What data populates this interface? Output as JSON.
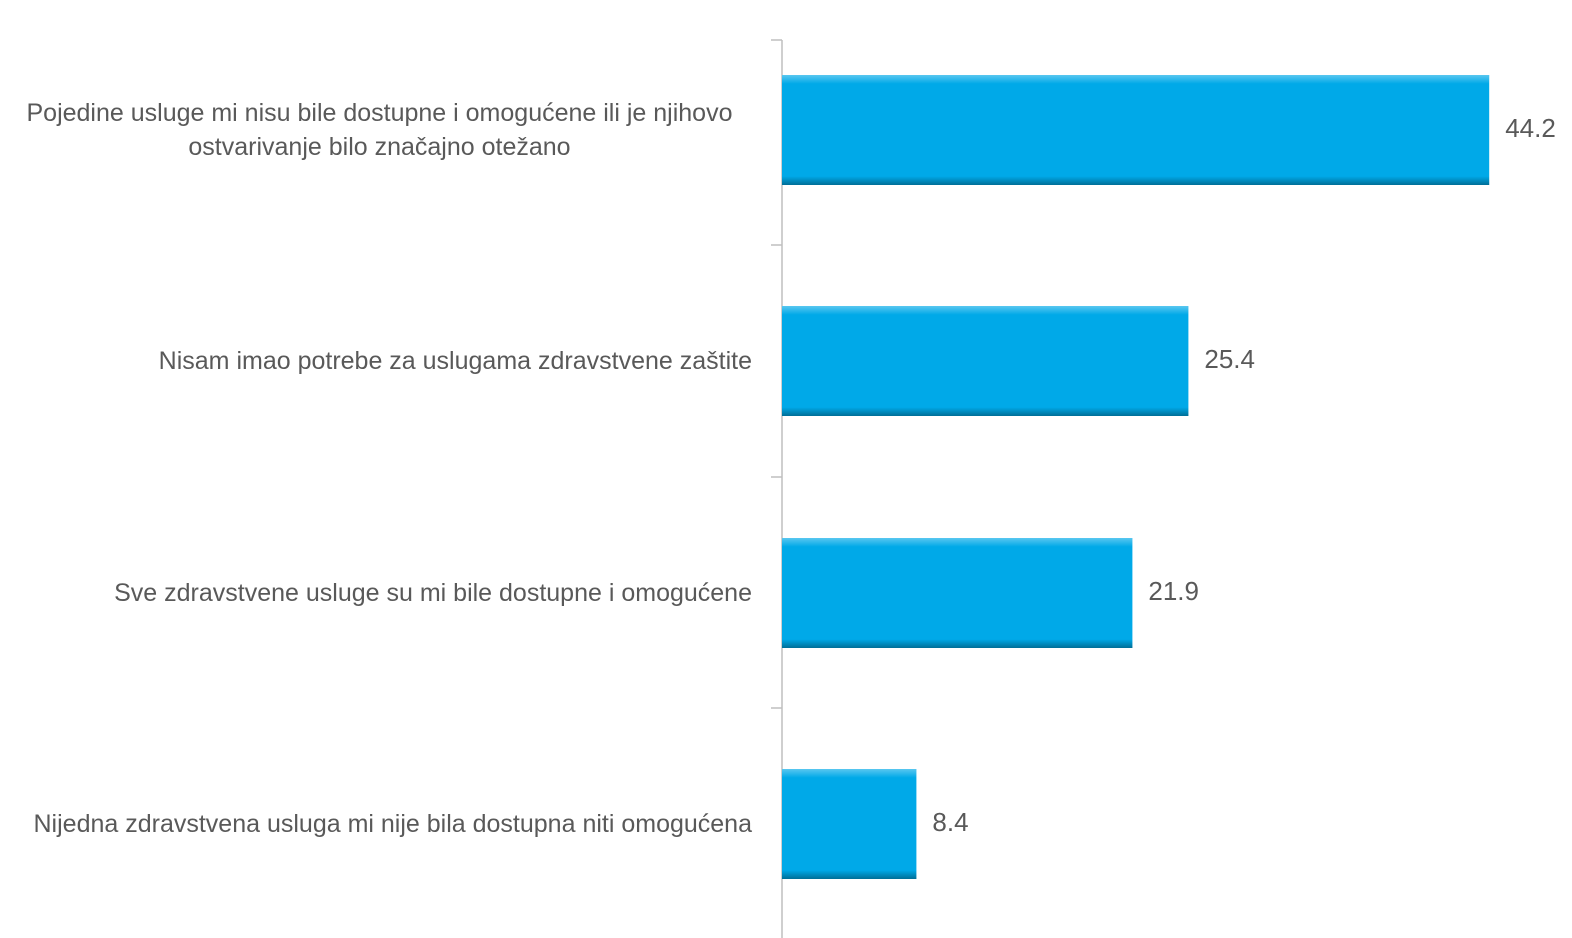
{
  "chart_data": {
    "type": "bar",
    "orientation": "horizontal",
    "categories": [
      "Pojedine usluge mi nisu bile dostupne i omogućene ili je njihovo ostvarivanje bilo značajno otežano",
      "Nisam imao potrebe za uslugama zdravstvene zaštite",
      "Sve zdravstvene usluge su mi bile dostupne i omogućene",
      "Nijedna zdravstvena usluga mi nije bila dostupna niti omogućena"
    ],
    "values": [
      44.2,
      25.4,
      21.9,
      8.4
    ],
    "color": "#00a9e8"
  }
}
